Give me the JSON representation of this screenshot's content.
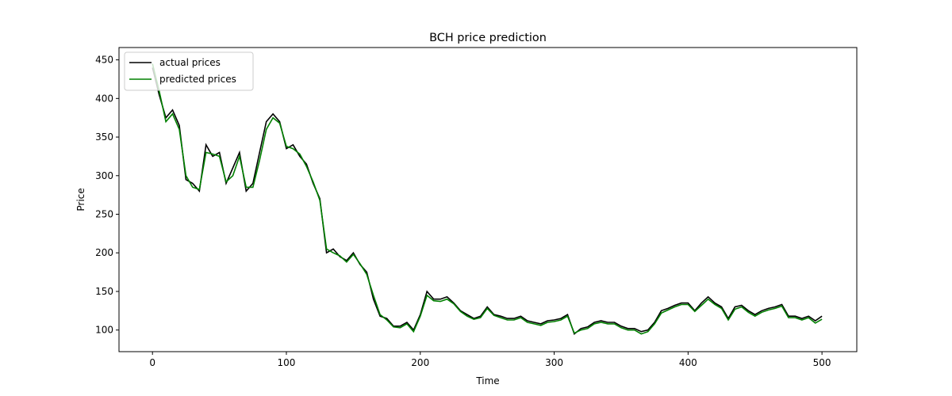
{
  "chart_data": {
    "type": "line",
    "title": "BCH price prediction",
    "xlabel": "Time",
    "ylabel": "Price",
    "x": [
      0,
      5,
      10,
      15,
      20,
      25,
      30,
      35,
      40,
      45,
      50,
      55,
      60,
      65,
      70,
      75,
      80,
      85,
      90,
      95,
      100,
      105,
      110,
      115,
      120,
      125,
      130,
      135,
      140,
      145,
      150,
      155,
      160,
      165,
      170,
      175,
      180,
      185,
      190,
      195,
      200,
      205,
      210,
      215,
      220,
      225,
      230,
      235,
      240,
      245,
      250,
      255,
      260,
      265,
      270,
      275,
      280,
      285,
      290,
      295,
      300,
      305,
      310,
      315,
      320,
      325,
      330,
      335,
      340,
      345,
      350,
      355,
      360,
      365,
      370,
      375,
      380,
      385,
      390,
      395,
      400,
      405,
      410,
      415,
      420,
      425,
      430,
      435,
      440,
      445,
      450,
      455,
      460,
      465,
      470,
      475,
      480,
      485,
      490,
      495,
      500
    ],
    "series": [
      {
        "name": "actual prices",
        "color": "#000000",
        "values": [
          440,
          405,
          375,
          385,
          365,
          295,
          290,
          280,
          340,
          325,
          330,
          290,
          310,
          330,
          280,
          290,
          330,
          370,
          380,
          370,
          335,
          340,
          325,
          315,
          290,
          270,
          200,
          205,
          195,
          190,
          200,
          185,
          175,
          140,
          118,
          115,
          105,
          105,
          110,
          100,
          120,
          150,
          140,
          140,
          143,
          135,
          125,
          120,
          115,
          118,
          130,
          120,
          118,
          115,
          115,
          118,
          112,
          110,
          108,
          112,
          113,
          115,
          120,
          95,
          102,
          104,
          110,
          112,
          110,
          110,
          105,
          102,
          102,
          98,
          100,
          110,
          125,
          128,
          132,
          135,
          135,
          125,
          135,
          143,
          135,
          130,
          115,
          130,
          132,
          125,
          120,
          125,
          128,
          130,
          133,
          118,
          118,
          115,
          118,
          112,
          118
        ]
      },
      {
        "name": "predicted prices",
        "color": "#008000",
        "values": [
          445,
          410,
          370,
          380,
          360,
          300,
          285,
          282,
          330,
          328,
          325,
          292,
          300,
          325,
          285,
          285,
          320,
          360,
          375,
          368,
          338,
          335,
          328,
          312,
          292,
          268,
          205,
          200,
          196,
          188,
          198,
          186,
          172,
          145,
          120,
          113,
          104,
          103,
          108,
          98,
          118,
          145,
          138,
          137,
          140,
          134,
          124,
          118,
          114,
          116,
          128,
          119,
          116,
          113,
          113,
          116,
          110,
          108,
          106,
          110,
          111,
          113,
          118,
          96,
          100,
          102,
          108,
          110,
          108,
          108,
          103,
          100,
          100,
          95,
          98,
          108,
          122,
          126,
          130,
          133,
          133,
          124,
          132,
          140,
          133,
          128,
          113,
          127,
          130,
          123,
          118,
          123,
          126,
          128,
          131,
          116,
          116,
          113,
          116,
          109,
          114
        ]
      }
    ],
    "xlim": [
      -25,
      526
    ],
    "ylim": [
      72,
      466
    ],
    "xticks": [
      0,
      100,
      200,
      300,
      400,
      500
    ],
    "yticks": [
      100,
      150,
      200,
      250,
      300,
      350,
      400,
      450
    ],
    "legend": "upper left"
  }
}
